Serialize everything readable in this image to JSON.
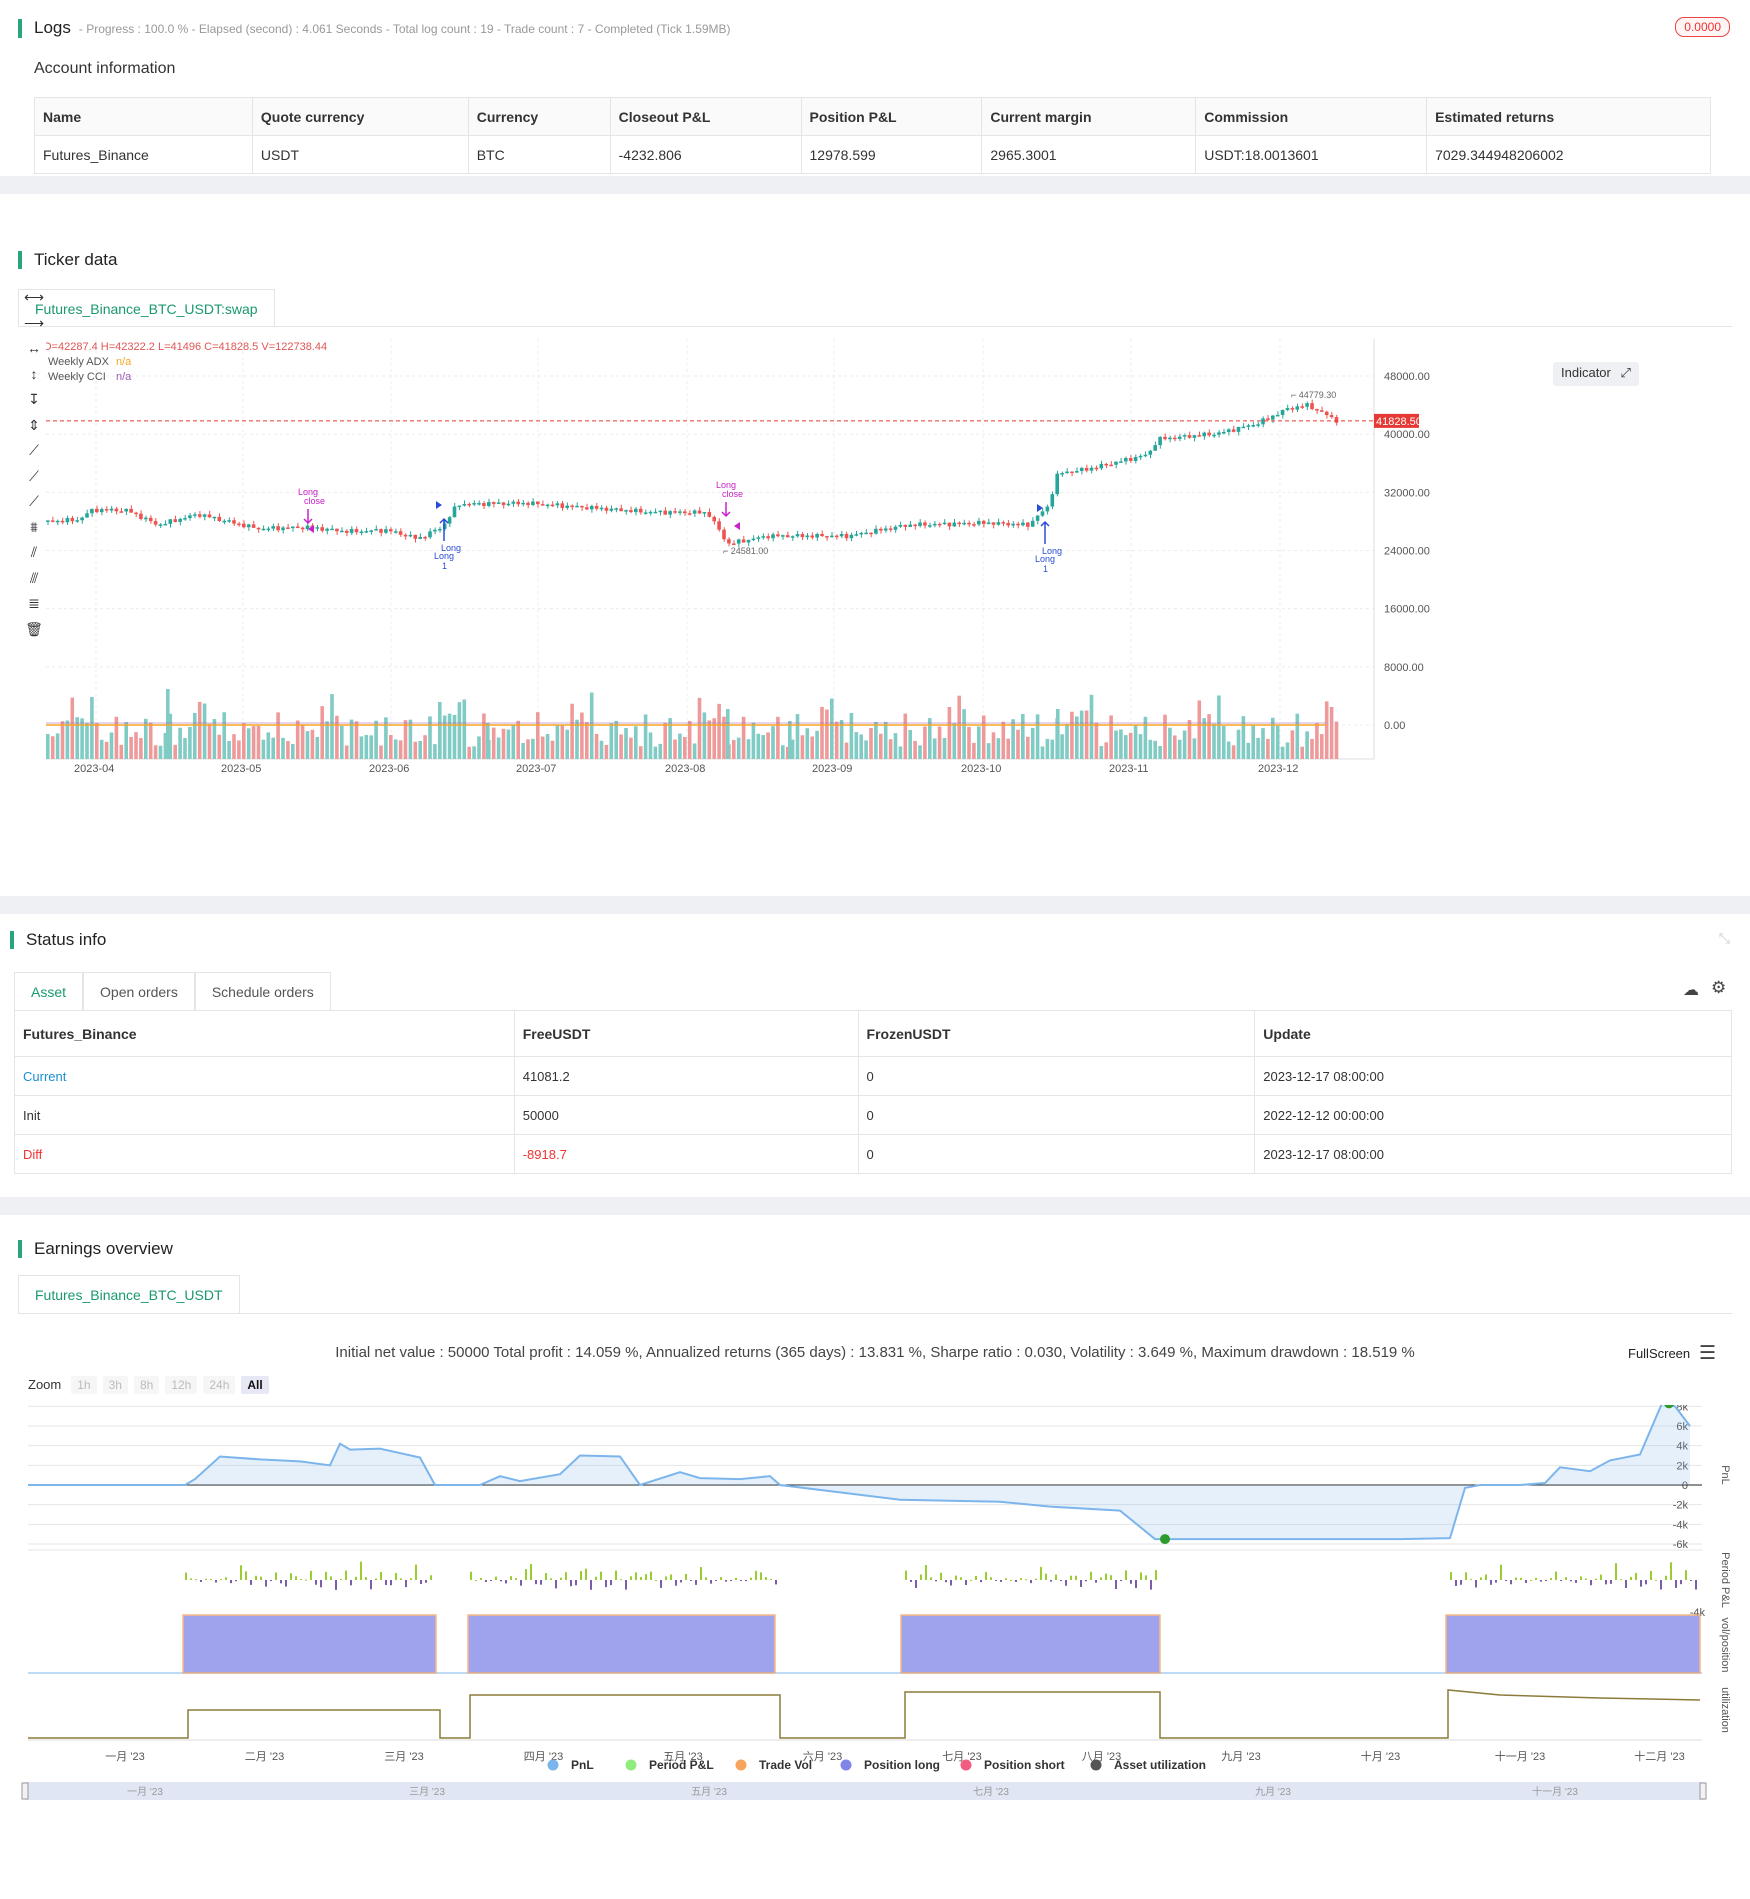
{
  "logs": {
    "title": "Logs",
    "summary": "- Progress : 100.0 % - Elapsed (second) : 4.061 Seconds - Total log count : 19 - Trade count : 7 - Completed (Tick 1.59MB)",
    "badge": "0.0000"
  },
  "account": {
    "title": "Account information",
    "headers": [
      "Name",
      "Quote currency",
      "Currency",
      "Closeout P&L",
      "Position P&L",
      "Current margin",
      "Commission",
      "Estimated returns"
    ],
    "row": [
      "Futures_Binance",
      "USDT",
      "BTC",
      "-4232.806",
      "12978.599",
      "2965.3001",
      "USDT:18.0013601",
      "7029.344948206002"
    ]
  },
  "ticker": {
    "title": "Ticker data",
    "tab": "Futures_Binance_BTC_USDT:swap",
    "ohlc": "O=42287.4 H=42322.2 L=41496 C=41828.5 V=122738.44",
    "legend": [
      {
        "label": "Weekly ADX",
        "value": "n/a",
        "color": "#f5a623"
      },
      {
        "label": "Weekly CCI",
        "value": "n/a",
        "color": "#9b59b6"
      }
    ],
    "indicator_btn": "Indicator",
    "price_tag": "41828.50",
    "high_label": "44779.30",
    "low_label": "24581.00",
    "yticks": [
      "48000.00",
      "40000.00",
      "32000.00",
      "24000.00",
      "16000.00",
      "8000.00",
      "0.00"
    ],
    "xticks": [
      "2023-04",
      "2023-05",
      "2023-06",
      "2023-07",
      "2023-08",
      "2023-09",
      "2023-10",
      "2023-11",
      "2023-12"
    ],
    "markers": [
      "Long",
      "close",
      "Long",
      "Long",
      "1",
      "Long",
      "close",
      "Long",
      "Long",
      "1"
    ]
  },
  "status": {
    "title": "Status info",
    "tabs": [
      "Asset",
      "Open orders",
      "Schedule orders"
    ],
    "headers": [
      "Futures_Binance",
      "FreeUSDT",
      "FrozenUSDT",
      "Update"
    ],
    "rows": [
      [
        "Current",
        "41081.2",
        "0",
        "2023-12-17 08:00:00"
      ],
      [
        "Init",
        "50000",
        "0",
        "2022-12-12 00:00:00"
      ],
      [
        "Diff",
        "-8918.7",
        "0",
        "2023-12-17 08:00:00"
      ]
    ]
  },
  "earnings": {
    "title": "Earnings overview",
    "tab": "Futures_Binance_BTC_USDT",
    "summary": "Initial net value : 50000 Total profit : 14.059 %, Annualized returns (365 days) : 13.831 %, Sharpe ratio : 0.030, Volatility : 3.649 %, Maximum drawdown : 18.519 %",
    "fullscreen": "FullScreen",
    "zoom_label": "Zoom",
    "zoom": [
      "1h",
      "3h",
      "8h",
      "12h",
      "24h",
      "All"
    ],
    "pnl_ticks": [
      "8k",
      "6k",
      "4k",
      "2k",
      "0",
      "-2k",
      "-4k",
      "-6k"
    ],
    "pp_ticks": [
      "4k",
      "-4k"
    ],
    "axis_titles": [
      "PnL",
      "Period P&L",
      "vol/position",
      "utilization"
    ],
    "months": [
      "一月 '23",
      "二月 '23",
      "三月 '23",
      "四月 '23",
      "五月 '23",
      "六月 '23",
      "七月 '23",
      "八月 '23",
      "九月 '23",
      "十月 '23",
      "十一月 '23",
      "十二月 '23"
    ],
    "nav_months": [
      "一月 '23",
      "三月 '23",
      "五月 '23",
      "七月 '23",
      "九月 '23",
      "十一月 '23"
    ],
    "legend": [
      {
        "label": "PnL",
        "color": "#7cb5ec"
      },
      {
        "label": "Period P&L",
        "color": "#90ed7d"
      },
      {
        "label": "Trade Vol",
        "color": "#f7a35c"
      },
      {
        "label": "Position long",
        "color": "#8085e9"
      },
      {
        "label": "Position short",
        "color": "#f15c80"
      },
      {
        "label": "Asset utilization",
        "color": "#555"
      }
    ]
  }
}
